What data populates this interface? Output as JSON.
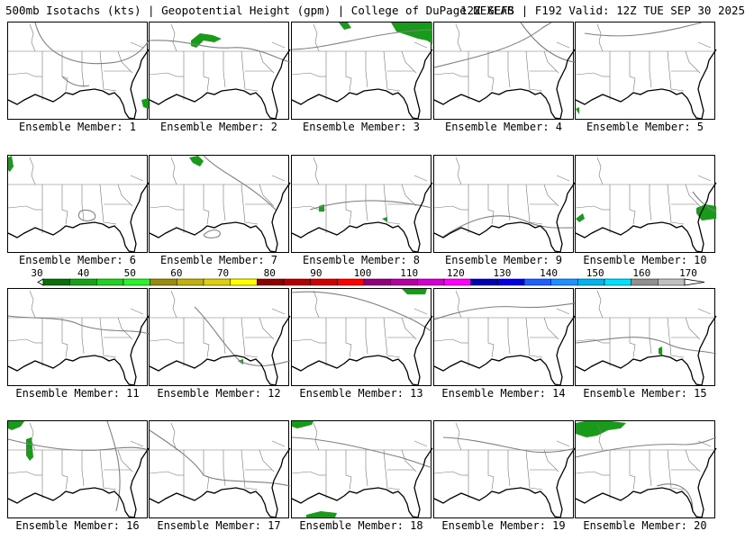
{
  "header": {
    "title": "500mb Isotachs (kts) | Geopotential Height (gpm) | College of DuPage NEXLAB",
    "run": "12Z GEFS | F192 Valid: 12Z TUE SEP 30 2025"
  },
  "panels": [
    {
      "label": "Ensemble Member: 1"
    },
    {
      "label": "Ensemble Member: 2"
    },
    {
      "label": "Ensemble Member: 3"
    },
    {
      "label": "Ensemble Member: 4"
    },
    {
      "label": "Ensemble Member: 5"
    },
    {
      "label": "Ensemble Member: 6"
    },
    {
      "label": "Ensemble Member: 7"
    },
    {
      "label": "Ensemble Member: 8"
    },
    {
      "label": "Ensemble Member: 9"
    },
    {
      "label": "Ensemble Member: 10"
    },
    {
      "label": "Ensemble Member: 11"
    },
    {
      "label": "Ensemble Member: 12"
    },
    {
      "label": "Ensemble Member: 13"
    },
    {
      "label": "Ensemble Member: 14"
    },
    {
      "label": "Ensemble Member: 15"
    },
    {
      "label": "Ensemble Member: 16"
    },
    {
      "label": "Ensemble Member: 17"
    },
    {
      "label": "Ensemble Member: 18"
    },
    {
      "label": "Ensemble Member: 19"
    },
    {
      "label": "Ensemble Member: 20"
    }
  ],
  "colorbar": {
    "ticks": [
      "30",
      "40",
      "50",
      "60",
      "70",
      "80",
      "90",
      "100",
      "110",
      "120",
      "130",
      "140",
      "150",
      "160",
      "170"
    ],
    "colors": [
      "#0a6e0a",
      "#18a018",
      "#22d022",
      "#2cf22c",
      "#9a8a10",
      "#c0b010",
      "#dcd010",
      "#ffff00",
      "#8b0000",
      "#b00000",
      "#d00000",
      "#ff0000",
      "#90007a",
      "#b000a0",
      "#d000d0",
      "#ff00ff",
      "#0000b0",
      "#0000e0",
      "#1e60ff",
      "#1e90ff",
      "#00b4f0",
      "#00e0ff",
      "#909090",
      "#c0c0c0"
    ]
  },
  "colors": {
    "coast": "#000000",
    "borders": "#777777",
    "contour": "#808080",
    "jet_fill": "#1a9a1a"
  }
}
